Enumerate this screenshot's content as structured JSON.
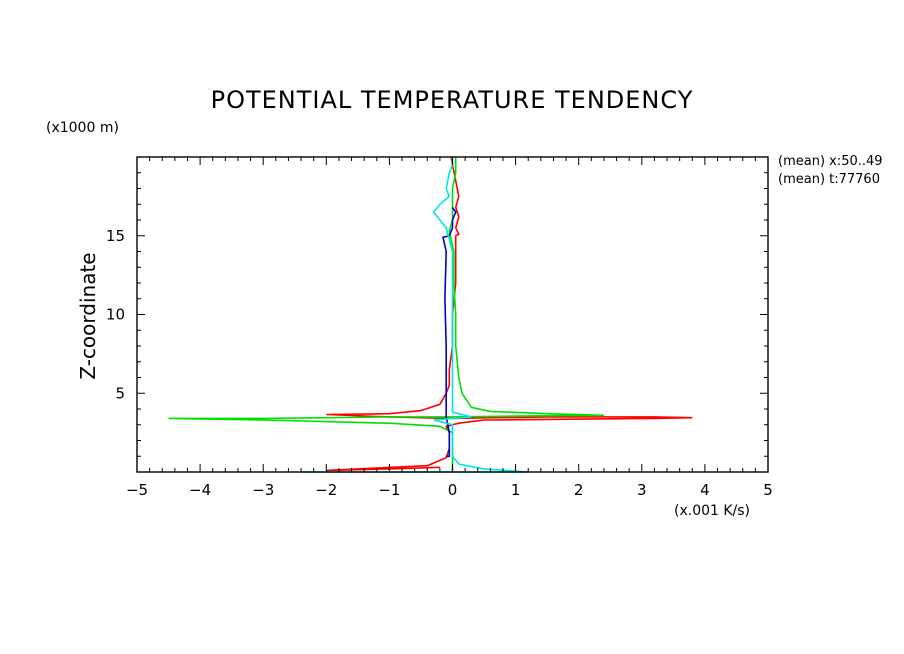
{
  "chart_data": {
    "type": "line",
    "title": "POTENTIAL TEMPERATURE TENDENCY",
    "xlabel": "(x.001 K/s)",
    "ylabel": "Z-coordinate",
    "y_unit": "(x1000 m)",
    "xlim": [
      -5,
      5
    ],
    "ylim": [
      0,
      20
    ],
    "x_ticks": [
      -5,
      -4,
      -3,
      -2,
      -1,
      0,
      1,
      2,
      3,
      4,
      5
    ],
    "y_ticks": [
      5,
      10,
      15
    ],
    "annotations": [
      "(mean) x:50..49",
      "(mean) t:77760"
    ],
    "colors": {
      "red": "#ff0000",
      "green": "#00e000",
      "blue": "#0000cc",
      "cyan": "#00e5e5"
    },
    "series": [
      {
        "color": "red",
        "points": [
          [
            -0.2,
            0.3
          ],
          [
            -1,
            0.2
          ],
          [
            -2,
            0.1
          ],
          [
            -0.4,
            0.4
          ],
          [
            -0.1,
            0.9
          ],
          [
            -0.05,
            1.5
          ],
          [
            -0.05,
            2.5
          ],
          [
            -0.1,
            2.9
          ],
          [
            0.1,
            3.1
          ],
          [
            0.5,
            3.3
          ],
          [
            3.2,
            3.4
          ],
          [
            3.8,
            3.45
          ],
          [
            3.2,
            3.5
          ],
          [
            1.5,
            3.5
          ],
          [
            0,
            3.4
          ],
          [
            -1.0,
            3.5
          ],
          [
            -2.0,
            3.65
          ],
          [
            -1.0,
            3.7
          ],
          [
            -0.5,
            3.9
          ],
          [
            -0.2,
            4.3
          ],
          [
            -0.1,
            5.0
          ],
          [
            -0.05,
            5.5
          ],
          [
            -0.05,
            6.5
          ],
          [
            0,
            8
          ],
          [
            0,
            10
          ],
          [
            0.05,
            12
          ],
          [
            0.05,
            13.5
          ],
          [
            0.05,
            15.0
          ],
          [
            0.1,
            15.1
          ],
          [
            0.05,
            15.5
          ],
          [
            0.1,
            16.2
          ],
          [
            0.05,
            16.8
          ],
          [
            0.1,
            17.5
          ],
          [
            0.05,
            18.5
          ],
          [
            0,
            19.5
          ],
          [
            -0.02,
            20
          ]
        ]
      },
      {
        "color": "green",
        "points": [
          [
            0,
            0
          ],
          [
            0,
            1
          ],
          [
            0,
            2.5
          ],
          [
            -0.2,
            2.9
          ],
          [
            -1,
            3.1
          ],
          [
            -3,
            3.3
          ],
          [
            -4.5,
            3.4
          ],
          [
            -3,
            3.4
          ],
          [
            -1,
            3.5
          ],
          [
            0,
            3.5
          ],
          [
            1,
            3.55
          ],
          [
            2.4,
            3.6
          ],
          [
            1.5,
            3.7
          ],
          [
            0.6,
            3.85
          ],
          [
            0.3,
            4.1
          ],
          [
            0.15,
            5
          ],
          [
            0.1,
            6
          ],
          [
            0.05,
            8
          ],
          [
            0.05,
            10
          ],
          [
            0.02,
            12
          ],
          [
            0.02,
            14
          ],
          [
            -0.05,
            15.3
          ],
          [
            0,
            16
          ],
          [
            0,
            17
          ],
          [
            0,
            18
          ],
          [
            0.05,
            19
          ],
          [
            0.05,
            20
          ]
        ]
      },
      {
        "color": "blue",
        "points": [
          [
            -0.1,
            1.0
          ],
          [
            -0.05,
            1.0
          ],
          [
            -0.05,
            2.5
          ],
          [
            -0.1,
            3.5
          ],
          [
            -0.1,
            6
          ],
          [
            -0.1,
            8
          ],
          [
            -0.12,
            11
          ],
          [
            -0.1,
            14
          ],
          [
            -0.15,
            14.9
          ],
          [
            -0.05,
            15
          ],
          [
            0.0,
            15.5
          ],
          [
            0.0,
            16.0
          ],
          [
            0.05,
            16.5
          ],
          [
            0,
            16.8
          ]
        ]
      },
      {
        "color": "cyan",
        "points": [
          [
            -2.4,
            0
          ],
          [
            -1.5,
            0
          ],
          [
            0.8,
            0
          ],
          [
            1.2,
            0
          ],
          [
            0.5,
            0.2
          ],
          [
            0.1,
            0.5
          ],
          [
            0,
            1
          ],
          [
            0,
            3.0
          ],
          [
            -0.3,
            3.3
          ],
          [
            0.3,
            3.5
          ],
          [
            0,
            3.8
          ],
          [
            0,
            5
          ],
          [
            0,
            10
          ],
          [
            0,
            14
          ],
          [
            -0.1,
            15.5
          ],
          [
            -0.2,
            16
          ],
          [
            -0.3,
            16.5
          ],
          [
            -0.2,
            17
          ],
          [
            -0.05,
            17.5
          ],
          [
            -0.1,
            18
          ],
          [
            -0.05,
            19
          ],
          [
            0,
            19.5
          ],
          [
            0,
            20
          ]
        ]
      }
    ]
  }
}
